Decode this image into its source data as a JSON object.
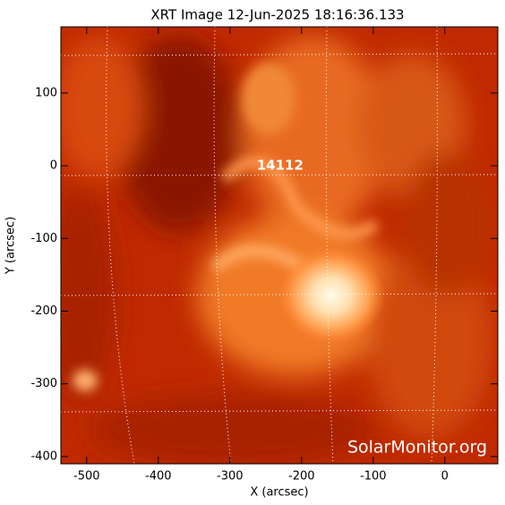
{
  "chart_data": {
    "type": "image",
    "title": "XRT Image 12-Jun-2025 18:16:36.133",
    "xlabel": "X (arcsec)",
    "ylabel": "Y (arcsec)",
    "xlim": [
      -536,
      74
    ],
    "ylim": [
      -410,
      191
    ],
    "xticks": [
      -500,
      -400,
      -300,
      -200,
      -100,
      0
    ],
    "yticks": [
      -400,
      -300,
      -200,
      -100,
      0,
      100
    ],
    "annotations": [
      {
        "text": "14112",
        "x": -230,
        "y": 0
      }
    ],
    "watermark": "SolarMonitor.org"
  }
}
